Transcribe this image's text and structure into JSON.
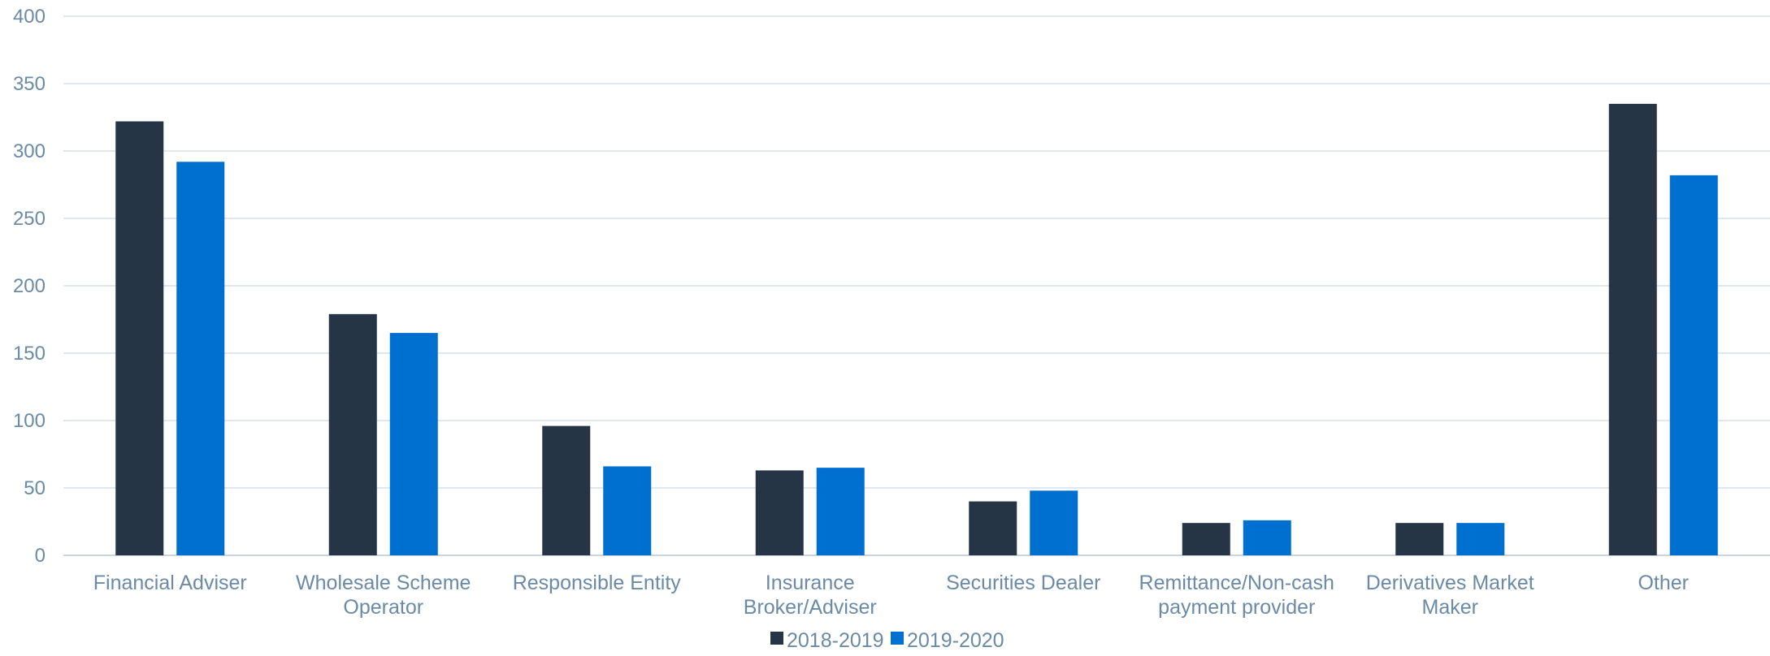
{
  "chart_data": {
    "type": "bar",
    "title": "",
    "xlabel": "",
    "ylabel": "",
    "ylim": [
      0,
      400
    ],
    "yticks": [
      0,
      50,
      100,
      150,
      200,
      250,
      300,
      350,
      400
    ],
    "grid": true,
    "legend_position": "bottom",
    "categories": [
      [
        "Financial Adviser"
      ],
      [
        "Wholesale Scheme",
        "Operator"
      ],
      [
        "Responsible Entity"
      ],
      [
        "Insurance",
        "Broker/Adviser"
      ],
      [
        "Securities Dealer"
      ],
      [
        "Remittance/Non-cash",
        "payment provider"
      ],
      [
        "Derivatives Market",
        "Maker"
      ],
      [
        "Other"
      ]
    ],
    "series": [
      {
        "name": "2018-2019",
        "color": "#253545",
        "values": [
          322,
          179,
          96,
          63,
          40,
          24,
          24,
          335
        ]
      },
      {
        "name": "2019-2020",
        "color": "#0070d0",
        "values": [
          292,
          165,
          66,
          65,
          48,
          26,
          24,
          282
        ]
      }
    ],
    "colors": {
      "gridline": "#d6e0ea",
      "axis": "#c8d4e0",
      "label": "#6a8aa6"
    }
  }
}
